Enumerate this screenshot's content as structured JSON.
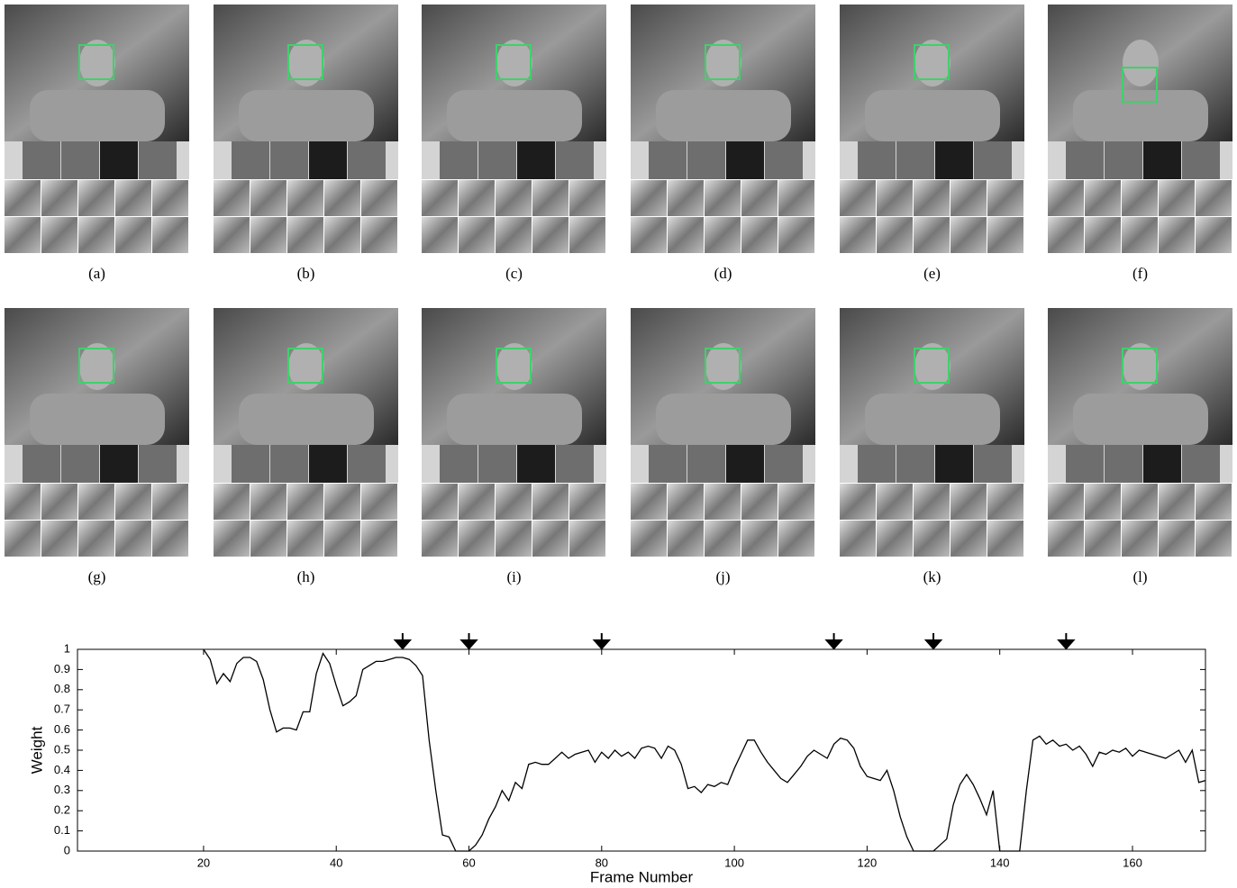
{
  "panels": [
    "(a)",
    "(b)",
    "(c)",
    "(d)",
    "(e)",
    "(f)",
    "(g)",
    "(h)",
    "(i)",
    "(j)",
    "(k)",
    "(l)"
  ],
  "chart_data": {
    "type": "line",
    "xlabel": "Frame Number",
    "ylabel": "Weight",
    "x": [
      20,
      21,
      22,
      23,
      24,
      25,
      26,
      27,
      28,
      29,
      30,
      31,
      32,
      33,
      34,
      35,
      36,
      37,
      38,
      39,
      40,
      41,
      42,
      43,
      44,
      45,
      46,
      47,
      48,
      49,
      50,
      51,
      52,
      53,
      54,
      55,
      56,
      57,
      58,
      59,
      60,
      61,
      62,
      63,
      64,
      65,
      66,
      67,
      68,
      69,
      70,
      71,
      72,
      73,
      74,
      75,
      76,
      77,
      78,
      79,
      80,
      81,
      82,
      83,
      84,
      85,
      86,
      87,
      88,
      89,
      90,
      91,
      92,
      93,
      94,
      95,
      96,
      97,
      98,
      99,
      100,
      101,
      102,
      103,
      104,
      105,
      106,
      107,
      108,
      109,
      110,
      111,
      112,
      113,
      114,
      115,
      116,
      117,
      118,
      119,
      120,
      121,
      122,
      123,
      124,
      125,
      126,
      127,
      128,
      129,
      130,
      131,
      132,
      133,
      134,
      135,
      136,
      137,
      138,
      139,
      140,
      141,
      142,
      143,
      144,
      145,
      146,
      147,
      148,
      149,
      150,
      151,
      152,
      153,
      154,
      155,
      156,
      157,
      158,
      159,
      160,
      161,
      162,
      163,
      164,
      165,
      166,
      167,
      168,
      169,
      170,
      171
    ],
    "series": [
      {
        "color": "#000000",
        "values": [
          1.0,
          0.95,
          0.83,
          0.88,
          0.84,
          0.93,
          0.96,
          0.96,
          0.94,
          0.85,
          0.7,
          0.59,
          0.61,
          0.61,
          0.6,
          0.69,
          0.69,
          0.88,
          0.98,
          0.93,
          0.82,
          0.72,
          0.74,
          0.77,
          0.9,
          0.92,
          0.94,
          0.94,
          0.95,
          0.96,
          0.96,
          0.95,
          0.92,
          0.87,
          0.55,
          0.3,
          0.08,
          0.07,
          0.0,
          0.0,
          0.0,
          0.03,
          0.08,
          0.16,
          0.22,
          0.3,
          0.25,
          0.34,
          0.31,
          0.43,
          0.44,
          0.43,
          0.43,
          0.46,
          0.49,
          0.46,
          0.48,
          0.49,
          0.5,
          0.44,
          0.49,
          0.46,
          0.5,
          0.47,
          0.49,
          0.46,
          0.51,
          0.52,
          0.51,
          0.46,
          0.52,
          0.5,
          0.43,
          0.31,
          0.32,
          0.29,
          0.33,
          0.32,
          0.34,
          0.33,
          0.41,
          0.48,
          0.55,
          0.55,
          0.49,
          0.44,
          0.4,
          0.36,
          0.34,
          0.38,
          0.42,
          0.47,
          0.5,
          0.48,
          0.46,
          0.53,
          0.56,
          0.55,
          0.51,
          0.42,
          0.37,
          0.36,
          0.35,
          0.4,
          0.3,
          0.17,
          0.07,
          0.0,
          0.0,
          0.0,
          0.0,
          0.03,
          0.06,
          0.23,
          0.33,
          0.38,
          0.33,
          0.26,
          0.18,
          0.3,
          0.0,
          0.0,
          0.0,
          0.0,
          0.3,
          0.55,
          0.57,
          0.53,
          0.55,
          0.52,
          0.53,
          0.5,
          0.52,
          0.48,
          0.42,
          0.49,
          0.48,
          0.5,
          0.49,
          0.51,
          0.47,
          0.5,
          0.49,
          0.48,
          0.47,
          0.46,
          0.48,
          0.5,
          0.44,
          0.5,
          0.34,
          0.35
        ]
      }
    ],
    "marked_frames": [
      50,
      60,
      80,
      115,
      130,
      150
    ],
    "xlim": [
      1,
      171
    ],
    "ylim": [
      0,
      1
    ],
    "xticks": [
      20,
      40,
      60,
      80,
      100,
      120,
      140,
      160
    ],
    "yticks": [
      0,
      0.1,
      0.2,
      0.3,
      0.4,
      0.5,
      0.6,
      0.7,
      0.8,
      0.9,
      1
    ]
  }
}
